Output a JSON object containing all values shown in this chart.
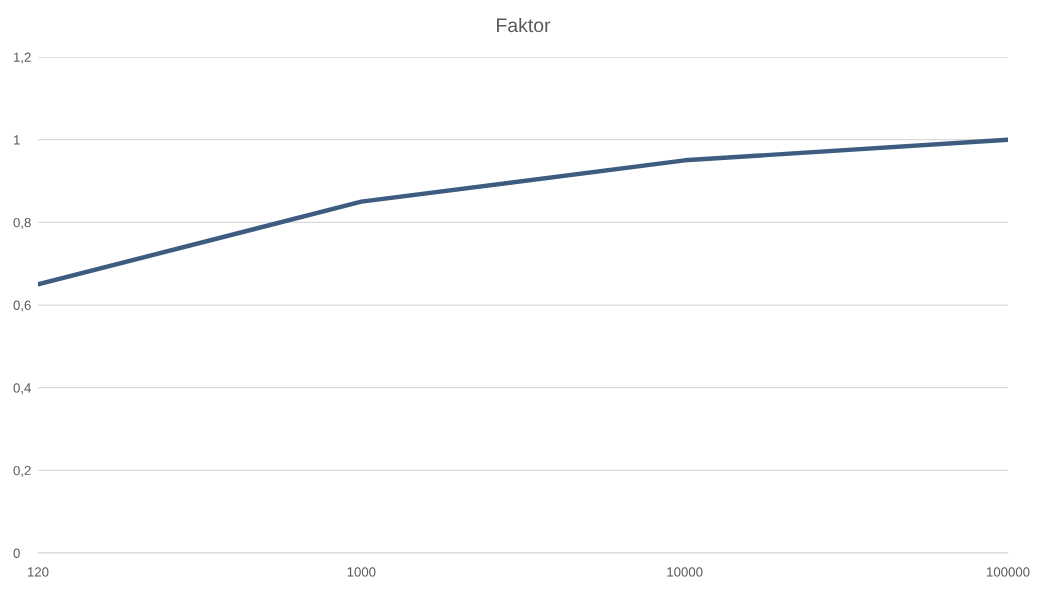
{
  "chart_data": {
    "type": "line",
    "title": "Faktor",
    "categories": [
      "120",
      "1000",
      "10000",
      "100000"
    ],
    "values": [
      0.65,
      0.85,
      0.95,
      1.0
    ],
    "color": "#3d5c80",
    "ylim": [
      0,
      1.2
    ],
    "yticks": [
      0,
      {
        "value": 0.2,
        "label": "0,2"
      },
      {
        "value": 0.4,
        "label": "0,4"
      },
      {
        "value": 0.6,
        "label": "0,6"
      },
      {
        "value": 0.8,
        "label": "0,8"
      },
      1,
      {
        "value": 1.2,
        "label": "1,2"
      }
    ],
    "grid": "y"
  }
}
